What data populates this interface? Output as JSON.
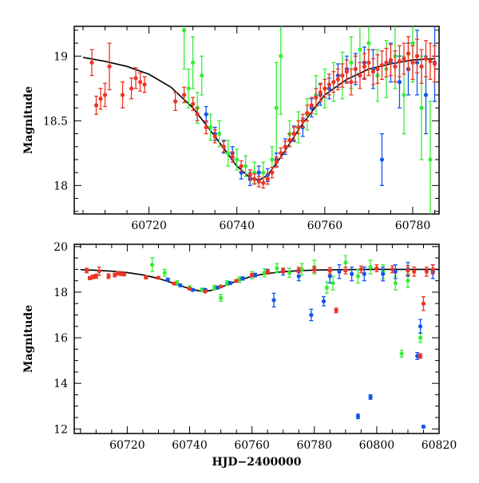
{
  "chart_data": [
    {
      "type": "scatter",
      "panel": "top",
      "title": "",
      "xlabel": "",
      "ylabel": "Magnitude",
      "xlim": [
        60703,
        60786
      ],
      "ylim": [
        19.23,
        17.78
      ],
      "y_inverted": true,
      "xticks": [
        60720,
        60740,
        60760,
        60780
      ],
      "yticks": [
        18,
        18.5,
        19
      ],
      "grid": false,
      "legend": "none",
      "colors": {
        "red": "#ee3322",
        "green": "#33ee33",
        "blue": "#1155ee",
        "model": "#000000"
      },
      "series": [
        {
          "color": "red",
          "x": [
            60707,
            60708,
            60709,
            60710,
            60711,
            60714,
            60716,
            60717,
            60718,
            60719,
            60726,
            60728,
            60730,
            60731,
            60733,
            60735,
            60737,
            60739,
            60741,
            60743,
            60744,
            60745,
            60746,
            60747,
            60748,
            60749,
            60750,
            60751,
            60752,
            60753,
            60754,
            60755,
            60756,
            60757,
            60758,
            60759,
            60760,
            60761,
            60762,
            60763,
            60764,
            60765,
            60766,
            60767,
            60768,
            60769,
            60770,
            60771,
            60772,
            60773,
            60774,
            60775,
            60776,
            60777,
            60778,
            60779,
            60780,
            60781,
            60782,
            60783,
            60784,
            60785
          ],
          "y": [
            18.95,
            18.62,
            18.67,
            18.7,
            18.92,
            18.7,
            18.75,
            18.83,
            18.8,
            18.78,
            18.65,
            18.7,
            18.63,
            18.55,
            18.45,
            18.38,
            18.3,
            18.22,
            18.15,
            18.08,
            18.05,
            18.03,
            18.02,
            18.05,
            18.1,
            18.18,
            18.25,
            18.3,
            18.35,
            18.4,
            18.45,
            18.5,
            18.56,
            18.62,
            18.68,
            18.72,
            18.75,
            18.78,
            18.8,
            18.82,
            18.85,
            18.88,
            18.8,
            18.9,
            18.85,
            18.92,
            18.95,
            18.88,
            18.9,
            18.93,
            18.95,
            18.97,
            18.92,
            18.96,
            18.98,
            19.02,
            18.95,
            19.0,
            18.92,
            18.98,
            18.96,
            18.94
          ],
          "err": [
            0.1,
            0.07,
            0.08,
            0.09,
            0.18,
            0.1,
            0.08,
            0.08,
            0.07,
            0.06,
            0.07,
            0.06,
            0.05,
            0.05,
            0.05,
            0.05,
            0.04,
            0.04,
            0.04,
            0.04,
            0.04,
            0.04,
            0.04,
            0.04,
            0.04,
            0.04,
            0.04,
            0.04,
            0.05,
            0.05,
            0.05,
            0.05,
            0.06,
            0.06,
            0.07,
            0.07,
            0.07,
            0.08,
            0.08,
            0.08,
            0.09,
            0.09,
            0.1,
            0.1,
            0.1,
            0.1,
            0.1,
            0.1,
            0.11,
            0.11,
            0.11,
            0.12,
            0.12,
            0.12,
            0.12,
            0.13,
            0.13,
            0.13,
            0.13,
            0.14,
            0.14,
            0.14
          ]
        },
        {
          "color": "green",
          "x": [
            60728,
            60729,
            60730,
            60731,
            60732,
            60734,
            60736,
            60738,
            60740,
            60742,
            60744,
            60746,
            60748,
            60749,
            60750,
            60752,
            60754,
            60756,
            60758,
            60760,
            60762,
            60764,
            60766,
            60768,
            60770,
            60772,
            60774,
            60776,
            60778,
            60780,
            60782,
            60784
          ],
          "y": [
            19.2,
            18.75,
            18.95,
            18.6,
            18.85,
            18.45,
            18.4,
            18.25,
            18.2,
            18.15,
            18.1,
            18.1,
            18.2,
            18.6,
            19.0,
            18.4,
            18.45,
            18.55,
            18.7,
            18.75,
            18.8,
            18.85,
            18.95,
            19.05,
            19.1,
            18.85,
            18.9,
            19.0,
            18.7,
            19.1,
            18.6,
            18.2
          ],
          "err": [
            0.3,
            0.15,
            0.2,
            0.12,
            0.15,
            0.1,
            0.1,
            0.1,
            0.08,
            0.08,
            0.08,
            0.08,
            0.1,
            0.35,
            0.45,
            0.1,
            0.12,
            0.12,
            0.15,
            0.15,
            0.15,
            0.18,
            0.2,
            0.2,
            0.25,
            0.2,
            0.22,
            0.25,
            0.3,
            0.3,
            0.4,
            0.45
          ]
        },
        {
          "color": "blue",
          "x": [
            60733,
            60735,
            60737,
            60739,
            60741,
            60743,
            60745,
            60747,
            60749,
            60751,
            60753,
            60755,
            60757,
            60759,
            60761,
            60763,
            60765,
            60767,
            60769,
            60771,
            60773,
            60775,
            60777,
            60779,
            60781,
            60783,
            60785
          ],
          "y": [
            18.55,
            18.4,
            18.3,
            18.25,
            18.1,
            18.05,
            18.1,
            18.08,
            18.2,
            18.3,
            18.4,
            18.45,
            18.6,
            18.7,
            18.75,
            18.85,
            18.9,
            18.9,
            18.95,
            18.9,
            18.2,
            18.95,
            18.8,
            18.9,
            18.95,
            18.7,
            18.95
          ],
          "err": [
            0.06,
            0.05,
            0.05,
            0.05,
            0.05,
            0.05,
            0.05,
            0.05,
            0.05,
            0.06,
            0.06,
            0.07,
            0.07,
            0.08,
            0.08,
            0.09,
            0.1,
            0.12,
            0.12,
            0.15,
            0.2,
            0.15,
            0.2,
            0.2,
            0.25,
            0.3,
            0.3
          ]
        }
      ],
      "model": {
        "x": [
          60705,
          60710,
          60715,
          60720,
          60725,
          60730,
          60735,
          60740,
          60743,
          60745,
          60747,
          60750,
          60755,
          60760,
          60765,
          60770,
          60775,
          60780,
          60785
        ],
        "y": [
          18.99,
          18.96,
          18.92,
          18.86,
          18.76,
          18.6,
          18.38,
          18.15,
          18.06,
          18.04,
          18.08,
          18.22,
          18.48,
          18.7,
          18.82,
          18.9,
          18.94,
          18.97,
          18.98
        ]
      }
    },
    {
      "type": "scatter",
      "panel": "bottom",
      "title": "",
      "xlabel": "HJD−2400000",
      "ylabel": "Magnitude",
      "xlim": [
        60703,
        60820
      ],
      "ylim": [
        20.1,
        11.8
      ],
      "y_inverted": true,
      "xticks": [
        60720,
        60740,
        60760,
        60780,
        60800,
        60820
      ],
      "yticks": [
        12,
        14,
        16,
        18,
        20
      ],
      "grid": false,
      "legend": "none",
      "colors": {
        "red": "#ee3322",
        "green": "#33ee33",
        "blue": "#1155ee",
        "model": "#000000"
      },
      "series": [
        {
          "color": "red",
          "x": [
            60707,
            60708,
            60709,
            60710,
            60711,
            60714,
            60716,
            60717,
            60718,
            60719,
            60726,
            60730,
            60735,
            60740,
            60745,
            60750,
            60755,
            60760,
            60765,
            60770,
            60775,
            60780,
            60785,
            60787,
            60790,
            60795,
            60800,
            60805,
            60810,
            60812,
            60814,
            60815,
            60816,
            60818
          ],
          "y": [
            18.95,
            18.62,
            18.67,
            18.7,
            18.92,
            18.7,
            18.75,
            18.83,
            18.8,
            18.78,
            18.65,
            18.63,
            18.38,
            18.15,
            18.03,
            18.25,
            18.5,
            18.75,
            18.88,
            18.95,
            18.97,
            19.0,
            18.94,
            17.2,
            18.95,
            19.0,
            19.05,
            19.0,
            18.95,
            18.9,
            15.2,
            17.5,
            18.9,
            19.0
          ],
          "err": [
            0.1,
            0.07,
            0.08,
            0.09,
            0.18,
            0.1,
            0.08,
            0.08,
            0.07,
            0.06,
            0.07,
            0.05,
            0.05,
            0.04,
            0.04,
            0.04,
            0.05,
            0.07,
            0.09,
            0.1,
            0.12,
            0.13,
            0.14,
            0.1,
            0.15,
            0.15,
            0.15,
            0.15,
            0.2,
            0.2,
            0.1,
            0.3,
            0.2,
            0.2
          ]
        },
        {
          "color": "green",
          "x": [
            60728,
            60732,
            60736,
            60740,
            60744,
            60748,
            60750,
            60752,
            60756,
            60760,
            60764,
            60768,
            60772,
            60776,
            60780,
            60784,
            60786,
            60790,
            60794,
            60798,
            60802,
            60806,
            60808,
            60810,
            60814
          ],
          "y": [
            19.2,
            18.85,
            18.4,
            18.2,
            18.1,
            18.2,
            17.75,
            18.4,
            18.55,
            18.75,
            18.85,
            19.05,
            18.85,
            19.0,
            19.1,
            18.2,
            18.4,
            19.3,
            18.7,
            19.1,
            18.9,
            18.4,
            15.3,
            18.5,
            16.0
          ],
          "err": [
            0.3,
            0.15,
            0.1,
            0.08,
            0.08,
            0.1,
            0.15,
            0.1,
            0.12,
            0.15,
            0.18,
            0.2,
            0.2,
            0.25,
            0.3,
            0.25,
            0.3,
            0.3,
            0.3,
            0.3,
            0.3,
            0.3,
            0.15,
            0.3,
            0.2
          ]
        },
        {
          "color": "blue",
          "x": [
            60733,
            60737,
            60741,
            60745,
            60749,
            60753,
            60757,
            60761,
            60765,
            60767,
            60770,
            60775,
            60779,
            60783,
            60785,
            60788,
            60792,
            60794,
            60796,
            60798,
            60802,
            60806,
            60810,
            60813,
            60814,
            60815,
            60818
          ],
          "y": [
            18.55,
            18.3,
            18.1,
            18.1,
            18.2,
            18.4,
            18.6,
            18.75,
            18.9,
            17.65,
            18.9,
            18.7,
            17.0,
            17.6,
            18.7,
            18.9,
            18.8,
            12.55,
            18.8,
            13.4,
            18.8,
            18.9,
            19.0,
            15.2,
            16.5,
            12.1,
            18.9
          ],
          "err": [
            0.06,
            0.05,
            0.05,
            0.05,
            0.05,
            0.06,
            0.07,
            0.08,
            0.1,
            0.3,
            0.15,
            0.2,
            0.25,
            0.2,
            0.3,
            0.3,
            0.3,
            0.1,
            0.3,
            0.1,
            0.3,
            0.3,
            0.3,
            0.15,
            0.3,
            0.05,
            0.3
          ]
        }
      ],
      "model": {
        "x": [
          60705,
          60710,
          60715,
          60720,
          60725,
          60730,
          60735,
          60740,
          60743,
          60745,
          60747,
          60750,
          60755,
          60760,
          60765,
          60770,
          60775,
          60780,
          60790,
          60800,
          60810,
          60820
        ],
        "y": [
          18.99,
          18.96,
          18.92,
          18.86,
          18.76,
          18.6,
          18.38,
          18.15,
          18.06,
          18.04,
          18.08,
          18.22,
          18.48,
          18.7,
          18.82,
          18.9,
          18.94,
          18.97,
          18.99,
          19.0,
          19.0,
          19.0
        ]
      }
    }
  ]
}
